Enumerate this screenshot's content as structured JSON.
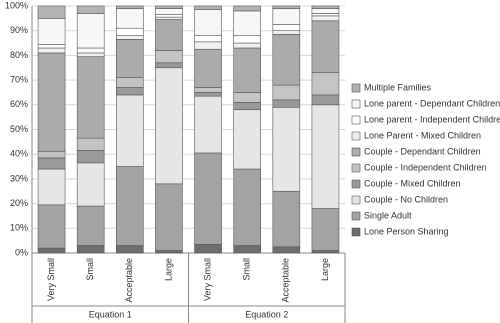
{
  "chart_data": {
    "type": "stacked-bar",
    "categories": [
      "Very Small",
      "Small",
      "Acceptable",
      "Large",
      "Very Small",
      "Small",
      "Acceptable",
      "Large"
    ],
    "groups": [
      "Equation 1",
      "Equation 2"
    ],
    "ylim": [
      0,
      100
    ],
    "yticks": [
      {
        "value": 0,
        "label": "0%"
      },
      {
        "value": 10,
        "label": "10%"
      },
      {
        "value": 20,
        "label": "20%"
      },
      {
        "value": 30,
        "label": "30%"
      },
      {
        "value": 40,
        "label": "40%"
      },
      {
        "value": 50,
        "label": "50%"
      },
      {
        "value": 60,
        "label": "60%"
      },
      {
        "value": 70,
        "label": "70%"
      },
      {
        "value": 80,
        "label": "80%"
      },
      {
        "value": 90,
        "label": "90%"
      },
      {
        "value": 100,
        "label": "100%"
      }
    ],
    "grid": true,
    "legend": "right",
    "series": [
      {
        "name": "Lone Person Sharing",
        "color": "#6e6e6e",
        "values": [
          2,
          3,
          3,
          1,
          3.5,
          3,
          2.5,
          1
        ]
      },
      {
        "name": "Single Adult",
        "color": "#a3a3a3",
        "values": [
          17.5,
          16,
          32,
          27,
          37,
          31,
          22.5,
          17
        ]
      },
      {
        "name": "Couple - No Children",
        "color": "#e6e6e6",
        "values": [
          14.5,
          17.5,
          29,
          47,
          23,
          24,
          34,
          42
        ]
      },
      {
        "name": "Couple - Mixed Children",
        "color": "#999999",
        "values": [
          4.5,
          5,
          3,
          2,
          1.5,
          3,
          3,
          4
        ]
      },
      {
        "name": "Couple - Independent Children",
        "color": "#c4c4c4",
        "values": [
          2.5,
          5,
          4,
          5,
          2,
          4,
          6,
          9
        ]
      },
      {
        "name": "Couple - Dependant Children",
        "color": "#ababab",
        "values": [
          40,
          33,
          15.5,
          12.5,
          15.5,
          18,
          20.5,
          21
        ]
      },
      {
        "name": "Lone Parent - Mixed Children",
        "color": "#f0f0f0",
        "values": [
          2,
          1.5,
          1.5,
          1,
          3,
          2,
          1.5,
          2
        ]
      },
      {
        "name": "Lone parent - Independent Children",
        "color": "#ffffff",
        "values": [
          1.5,
          2,
          3,
          1,
          2.5,
          3,
          2.5,
          1
        ]
      },
      {
        "name": "Lone parent - Dependant Children",
        "color": "#f7f7f7",
        "values": [
          10.5,
          14,
          8,
          2.5,
          10.5,
          10,
          6.5,
          2
        ]
      },
      {
        "name": "Multiple Families",
        "color": "#b3b3b3",
        "values": [
          5,
          3,
          1,
          1,
          1.5,
          2,
          1,
          1
        ]
      }
    ]
  }
}
